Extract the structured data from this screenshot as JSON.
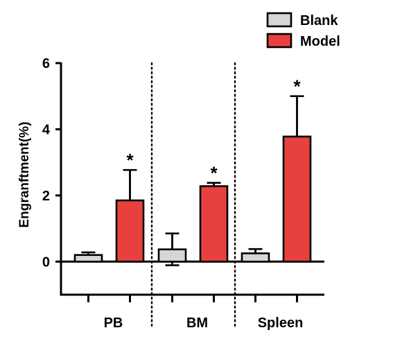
{
  "chart_data": {
    "type": "bar",
    "categories": [
      "PB",
      "BM",
      "Spleen"
    ],
    "series": [
      {
        "name": "Blank",
        "color": "#d6d6d6",
        "values": [
          0.2,
          0.37,
          0.25
        ],
        "errors": [
          0.08,
          0.48,
          0.13
        ]
      },
      {
        "name": "Model",
        "color": "#e8403f",
        "values": [
          1.85,
          2.28,
          3.78
        ],
        "errors": [
          0.92,
          0.1,
          1.22
        ]
      }
    ],
    "significance": [
      "*",
      "*",
      "*"
    ],
    "ylabel": "Engranftment(%)",
    "yticks": [
      "0",
      "2",
      "4",
      "6"
    ],
    "ylim": [
      -1,
      6
    ],
    "legend_position": "top-right",
    "group_separators": "dotted"
  }
}
